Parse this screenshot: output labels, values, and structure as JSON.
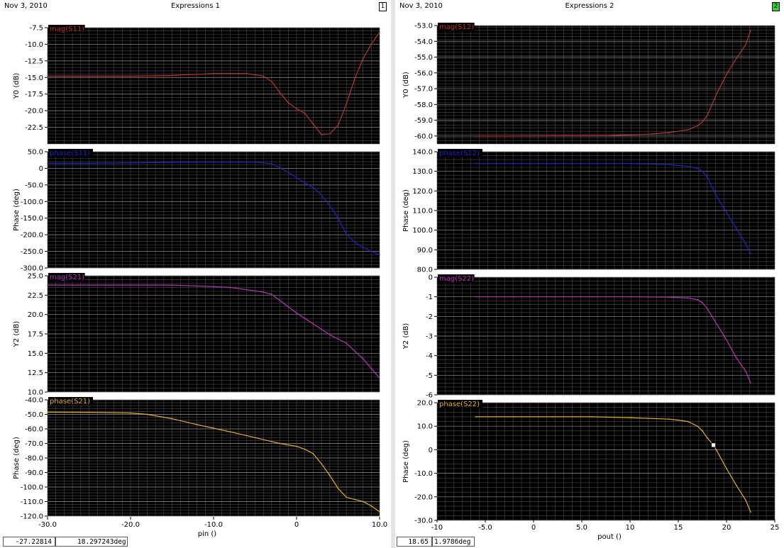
{
  "windows": [
    {
      "date": "Nov 3, 2010",
      "title": "Expressions 1",
      "index": "1",
      "xlabel": "pin ()",
      "readouts": [
        "-27.22814",
        "18.297243deg"
      ]
    },
    {
      "date": "Nov 3, 2010",
      "title": "Expressions 2",
      "index": "2",
      "xlabel": "pout ()",
      "readouts": [
        "18.65",
        "1.9786deg"
      ]
    }
  ],
  "chart_data": [
    {
      "type": "line",
      "title": "",
      "window": 1,
      "trace": "mag(S11)",
      "color": "#c03030",
      "ylabel": "Y0 (dB)",
      "ylim": [
        -25,
        -7.5
      ],
      "yticks": [
        -7.5,
        -10.0,
        -12.5,
        -15.0,
        -17.5,
        -20.0,
        -22.5
      ],
      "ytick_labels": [
        "-7.5",
        "-10.0",
        "-12.5",
        "-15.0",
        "-17.5",
        "-20.0",
        "-22.5"
      ],
      "xlim": [
        -30,
        10
      ],
      "grid": true,
      "x": [
        -30,
        -25,
        -20,
        -15,
        -10,
        -8,
        -6,
        -4,
        -3,
        -2,
        -1,
        0,
        1,
        2,
        3,
        4,
        5,
        6,
        7,
        8,
        9,
        10
      ],
      "y": [
        -14.8,
        -14.8,
        -14.8,
        -14.7,
        -14.4,
        -14.4,
        -14.4,
        -14.8,
        -15.6,
        -17.3,
        -18.8,
        -19.7,
        -20.4,
        -22.0,
        -23.6,
        -23.5,
        -22.2,
        -19.0,
        -15.2,
        -12.2,
        -10.0,
        -8.2
      ]
    },
    {
      "type": "line",
      "title": "",
      "window": 1,
      "trace": "phase(S11)",
      "color": "#2222c8",
      "ylabel": "Phase (deg)",
      "ylim": [
        -300,
        50
      ],
      "yticks": [
        50,
        0,
        -50,
        -100,
        -150,
        -200,
        -250,
        -300
      ],
      "ytick_labels": [
        "50.0",
        "0",
        "-50.0",
        "-100.0",
        "-150.0",
        "-200.0",
        "-250.0",
        "-300.0"
      ],
      "xlim": [
        -30,
        10
      ],
      "grid": true,
      "x": [
        -30,
        -25,
        -20,
        -15,
        -10,
        -5,
        -3,
        -2,
        -1,
        0,
        1,
        2,
        3,
        4,
        5,
        6,
        7,
        8,
        9,
        10
      ],
      "y": [
        15,
        15,
        16,
        18,
        19,
        19,
        14,
        2,
        -12,
        -28,
        -44,
        -58,
        -80,
        -112,
        -150,
        -198,
        -222,
        -238,
        -250,
        -260
      ]
    },
    {
      "type": "line",
      "title": "",
      "window": 1,
      "trace": "mag(S21)",
      "color": "#c030c0",
      "ylabel": "Y2 (dB)",
      "ylim": [
        10,
        25
      ],
      "yticks": [
        25,
        22.5,
        20,
        17.5,
        15,
        12.5,
        10
      ],
      "ytick_labels": [
        "25.0",
        "22.5",
        "20.0",
        "17.5",
        "15.0",
        "12.5",
        "10.0"
      ],
      "xlim": [
        -30,
        10
      ],
      "grid": true,
      "x": [
        -30,
        -25,
        -20,
        -15,
        -10,
        -8,
        -6,
        -4,
        -3,
        -2,
        0,
        2,
        4,
        6,
        8,
        10
      ],
      "y": [
        23.8,
        23.8,
        23.8,
        23.8,
        23.6,
        23.5,
        23.2,
        22.9,
        22.6,
        21.8,
        20.2,
        18.8,
        17.4,
        16.3,
        14.3,
        11.8
      ]
    },
    {
      "type": "line",
      "title": "",
      "window": 1,
      "trace": "phase(S21)",
      "color": "#e8b020",
      "ylabel": "Phase (deg)",
      "ylim": [
        -120,
        -40
      ],
      "yticks": [
        -40,
        -50,
        -60,
        -70,
        -80,
        -90,
        -100,
        -110,
        -120
      ],
      "ytick_labels": [
        "-40.0",
        "-50.0",
        "-60.0",
        "-70.0",
        "-80.0",
        "-90.0",
        "-100.0",
        "-110.0",
        "-120.0"
      ],
      "xlim": [
        -30,
        10
      ],
      "grid": true,
      "x": [
        -30,
        -25,
        -20,
        -18,
        -15,
        -12,
        -10,
        -8,
        -5,
        -2,
        0,
        1,
        2,
        3,
        4,
        5,
        6,
        8,
        9,
        10
      ],
      "y": [
        -48.5,
        -48.6,
        -49,
        -50,
        -53,
        -57,
        -59.5,
        -62,
        -66,
        -70,
        -72,
        -74,
        -77,
        -84,
        -92,
        -101,
        -107,
        -110,
        -113,
        -117
      ]
    },
    {
      "type": "line",
      "title": "",
      "window": 2,
      "trace": "mag(S12)",
      "color": "#c03030",
      "ylabel": "Y0 (dB)",
      "ylim": [
        -60.5,
        -53
      ],
      "yticks": [
        -53,
        -54,
        -55,
        -56,
        -57,
        -58,
        -59,
        -60
      ],
      "ytick_labels": [
        "-53.0",
        "-54.0",
        "-55.0",
        "-56.0",
        "-57.0",
        "-58.0",
        "-59.0",
        "-60.0"
      ],
      "xlim": [
        -10,
        25
      ],
      "grid": true,
      "x": [
        -6,
        -2,
        2,
        6,
        8,
        10,
        12,
        14,
        15,
        16,
        17,
        17.5,
        18,
        19,
        20,
        21,
        22,
        22.5
      ],
      "y": [
        -60,
        -60,
        -59.98,
        -59.98,
        -59.97,
        -59.93,
        -59.88,
        -59.78,
        -59.7,
        -59.6,
        -59.35,
        -59.1,
        -58.7,
        -57.3,
        -56.1,
        -55.1,
        -54.2,
        -53.3
      ]
    },
    {
      "type": "line",
      "title": "",
      "window": 2,
      "trace": "phase(S12)",
      "color": "#2222c8",
      "ylabel": "Phase (deg)",
      "ylim": [
        80,
        140
      ],
      "yticks": [
        140,
        130,
        120,
        110,
        100,
        90,
        80
      ],
      "ytick_labels": [
        "140.0",
        "130.0",
        "120.0",
        "110.0",
        "100.0",
        "90.0",
        "80.0"
      ],
      "xlim": [
        -10,
        25
      ],
      "grid": true,
      "x": [
        -6,
        -2,
        2,
        6,
        10,
        14,
        15,
        16,
        17,
        17.5,
        18,
        19,
        20,
        21,
        22,
        22.5
      ],
      "y": [
        134,
        134,
        134,
        134,
        134,
        133.5,
        133,
        132.5,
        131.5,
        130,
        127,
        117,
        109,
        101,
        93,
        88
      ]
    },
    {
      "type": "line",
      "title": "",
      "window": 2,
      "trace": "mag(S22)",
      "color": "#c030c0",
      "ylabel": "Y2 (dB)",
      "ylim": [
        -6,
        0
      ],
      "yticks": [
        0,
        -1,
        -2,
        -3,
        -4,
        -5,
        -6
      ],
      "ytick_labels": [
        "0",
        "-1",
        "-2",
        "-3",
        "-4",
        "-5",
        "-6"
      ],
      "xlim": [
        -10,
        25
      ],
      "grid": true,
      "x": [
        -6,
        -2,
        2,
        6,
        10,
        14,
        15,
        16,
        17,
        17.5,
        18,
        19,
        20,
        21,
        22,
        22.5
      ],
      "y": [
        -1,
        -1,
        -1,
        -1,
        -1,
        -1.02,
        -1.04,
        -1.06,
        -1.15,
        -1.3,
        -1.6,
        -2.4,
        -3.2,
        -4.1,
        -4.8,
        -5.4
      ]
    },
    {
      "type": "line",
      "title": "",
      "window": 2,
      "trace": "phase(S22)",
      "color": "#e8b020",
      "ylabel": "Phase (deg)",
      "ylim": [
        -30,
        20
      ],
      "yticks": [
        20,
        10,
        0,
        -10,
        -20,
        -30
      ],
      "ytick_labels": [
        "20.0",
        "10.0",
        "0",
        "-10.0",
        "-20.0",
        "-30.0"
      ],
      "xlim": [
        -10,
        25
      ],
      "grid": true,
      "x": [
        -6,
        -2,
        2,
        6,
        10,
        14,
        15,
        16,
        17,
        17.5,
        18,
        18.65,
        19,
        20,
        21,
        22,
        22.5
      ],
      "y": [
        14,
        14,
        14,
        14,
        13.6,
        13,
        12.6,
        12,
        10,
        8,
        5,
        2,
        -0.5,
        -8,
        -15,
        -21.5,
        -26.5
      ],
      "marker": {
        "x": 18.65,
        "y": 1.9786
      }
    }
  ],
  "x_axes": [
    {
      "window": 1,
      "ticks": [
        -30,
        -20,
        -10,
        0,
        10
      ],
      "labels": [
        "-30.0",
        "-20.0",
        "-10.0",
        "0",
        "10.0"
      ]
    },
    {
      "window": 2,
      "ticks": [
        -10,
        -5,
        0,
        5,
        10,
        15,
        20,
        25
      ],
      "labels": [
        "-10",
        "-5.0",
        "0",
        "5.0",
        "10",
        "15",
        "20",
        "25"
      ]
    }
  ]
}
